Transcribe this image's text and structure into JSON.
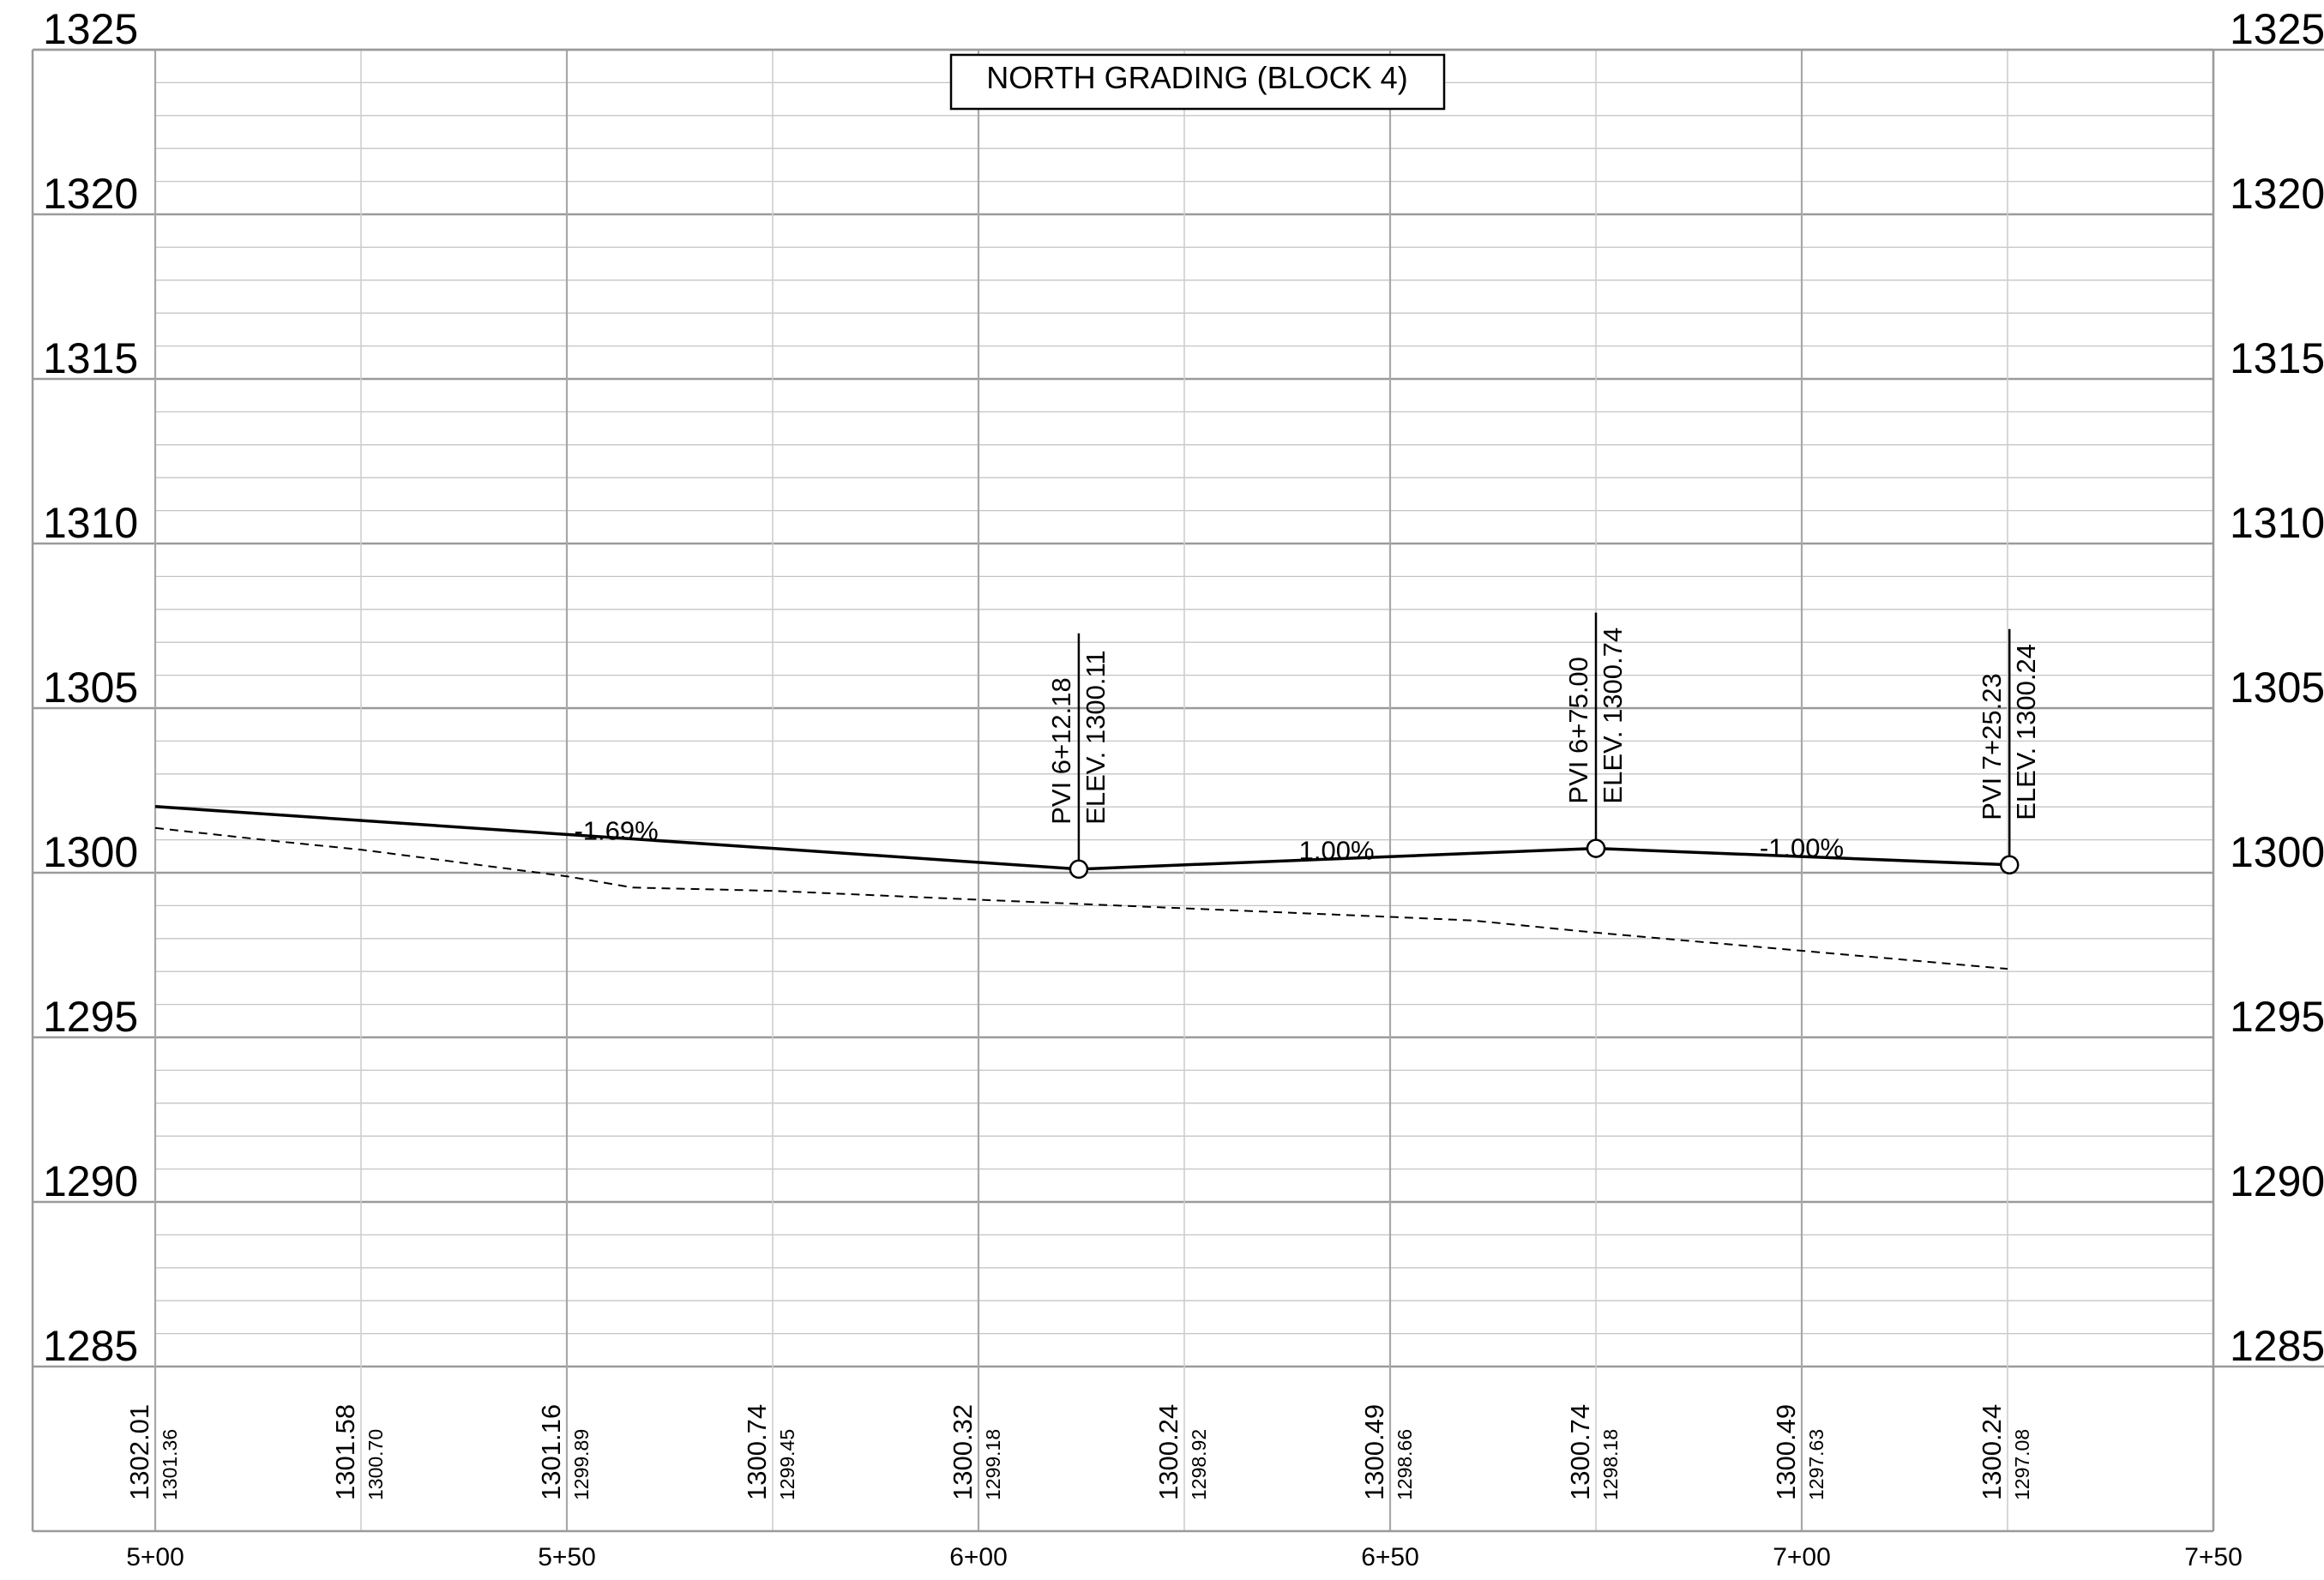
{
  "profile": {
    "title": "NORTH GRADING (BLOCK 4)",
    "y_axis": {
      "min": 1285,
      "max": 1325,
      "major_step": 5,
      "minor_step": 1,
      "tick_labels": [
        "1325",
        "1320",
        "1315",
        "1310",
        "1305",
        "1300",
        "1295",
        "1290",
        "1285"
      ]
    },
    "x_axis": {
      "min_station": 500,
      "max_station": 750,
      "major_step": 50,
      "minor_step": 25,
      "tick_labels": [
        "5+00",
        "5+50",
        "6+00",
        "6+50",
        "7+00",
        "7+50"
      ]
    },
    "proposed_grade": {
      "style": "solid",
      "points": [
        {
          "station": 500.0,
          "elev": 1302.01
        },
        {
          "station": 612.18,
          "elev": 1300.11
        },
        {
          "station": 675.0,
          "elev": 1300.74
        },
        {
          "station": 725.23,
          "elev": 1300.24
        }
      ]
    },
    "existing_grade": {
      "style": "dashed",
      "points": [
        {
          "station": 500,
          "elev": 1301.36
        },
        {
          "station": 515,
          "elev": 1300.95
        },
        {
          "station": 525,
          "elev": 1300.7
        },
        {
          "station": 550,
          "elev": 1299.89
        },
        {
          "station": 558,
          "elev": 1299.55
        },
        {
          "station": 575,
          "elev": 1299.45
        },
        {
          "station": 600,
          "elev": 1299.18
        },
        {
          "station": 625,
          "elev": 1298.92
        },
        {
          "station": 650,
          "elev": 1298.66
        },
        {
          "station": 660,
          "elev": 1298.55
        },
        {
          "station": 675,
          "elev": 1298.18
        },
        {
          "station": 700,
          "elev": 1297.63
        },
        {
          "station": 725,
          "elev": 1297.08
        }
      ]
    },
    "grade_labels": [
      {
        "text": "-1.69%",
        "station": 556,
        "elev": 1301.0
      },
      {
        "text": "1.00%",
        "station": 643.5,
        "elev": 1300.4
      },
      {
        "text": "-1.00%",
        "station": 700,
        "elev": 1300.48
      }
    ],
    "pvis": [
      {
        "station": 612.18,
        "elev": 1300.11,
        "station_label": "PVI 6+12.18",
        "elev_label": "ELEV. 1300.11"
      },
      {
        "station": 675.0,
        "elev": 1300.74,
        "station_label": "PVI 6+75.00",
        "elev_label": "ELEV. 1300.74"
      },
      {
        "station": 725.23,
        "elev": 1300.24,
        "station_label": "PVI 7+25.23",
        "elev_label": "ELEV. 1300.24"
      }
    ],
    "bottom_elevations": [
      {
        "station": 500,
        "proposed": "1302.01",
        "existing": "1301.36"
      },
      {
        "station": 525,
        "proposed": "1301.58",
        "existing": "1300.70"
      },
      {
        "station": 550,
        "proposed": "1301.16",
        "existing": "1299.89"
      },
      {
        "station": 575,
        "proposed": "1300.74",
        "existing": "1299.45"
      },
      {
        "station": 600,
        "proposed": "1300.32",
        "existing": "1299.18"
      },
      {
        "station": 625,
        "proposed": "1300.24",
        "existing": "1298.92"
      },
      {
        "station": 650,
        "proposed": "1300.49",
        "existing": "1298.66"
      },
      {
        "station": 675,
        "proposed": "1300.74",
        "existing": "1298.18"
      },
      {
        "station": 700,
        "proposed": "1300.49",
        "existing": "1297.63"
      },
      {
        "station": 725,
        "proposed": "1300.24",
        "existing": "1297.08"
      }
    ]
  }
}
